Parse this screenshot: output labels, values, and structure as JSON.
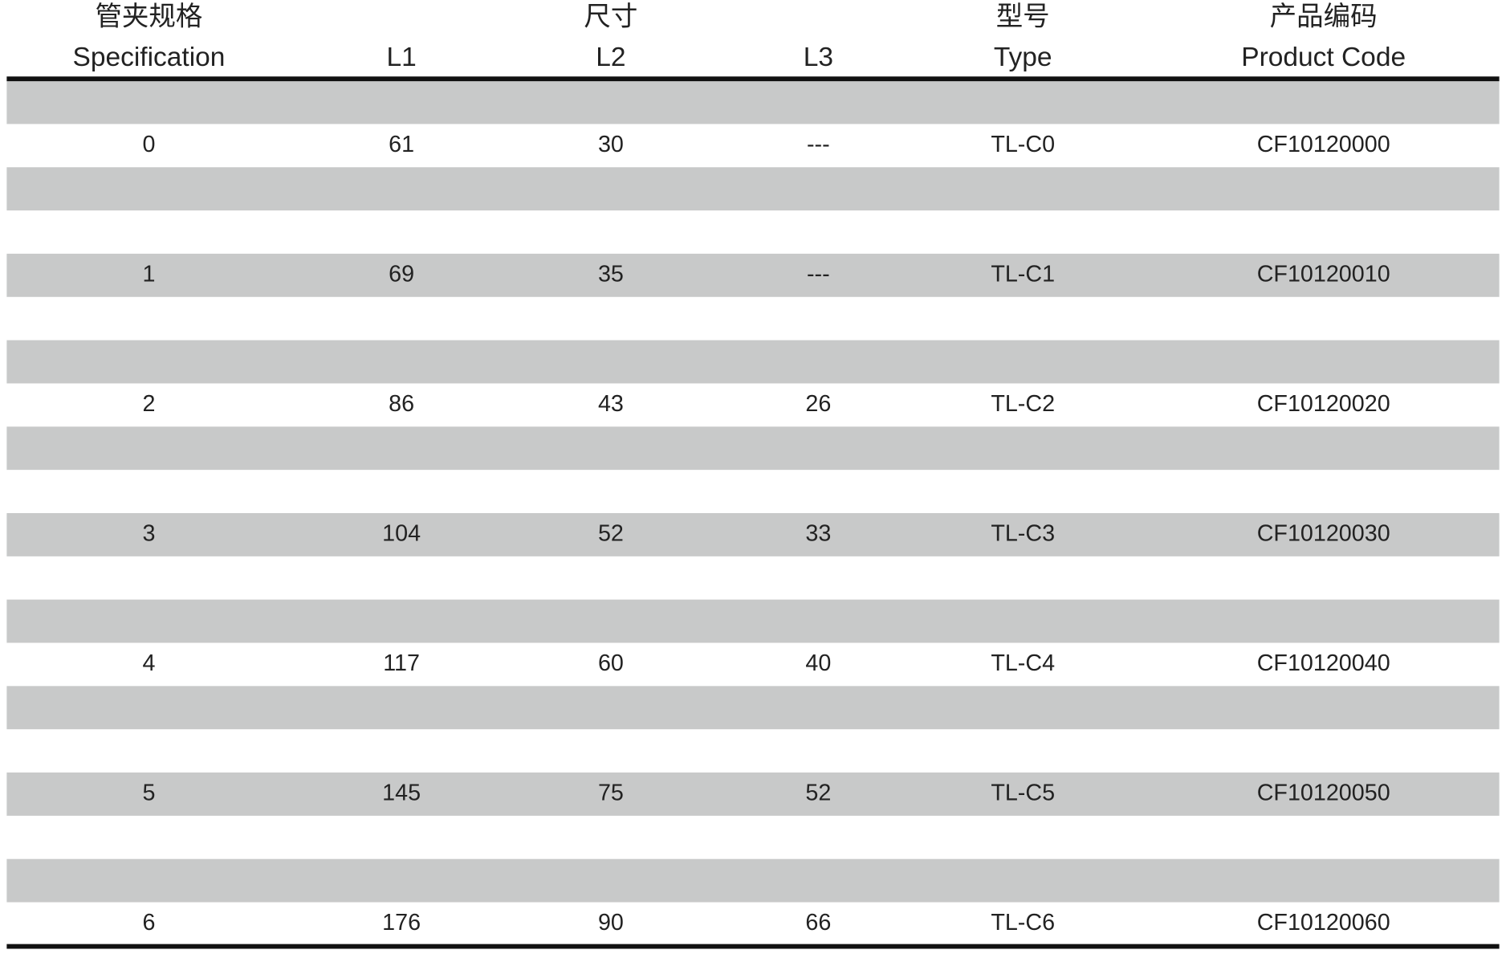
{
  "header": {
    "spec_cn": "管夹规格",
    "dim_cn": "尺寸",
    "type_cn": "型号",
    "code_cn": "产品编码",
    "columns": [
      "Specification",
      "L1",
      "L2",
      "L3",
      "Type",
      "Product Code"
    ]
  },
  "table": {
    "rows": [
      [
        "0",
        "61",
        "30",
        "---",
        "TL-C0",
        "CF10120000"
      ],
      [
        "1",
        "69",
        "35",
        "---",
        "TL-C1",
        "CF10120010"
      ],
      [
        "2",
        "86",
        "43",
        "26",
        "TL-C2",
        "CF10120020"
      ],
      [
        "3",
        "104",
        "52",
        "33",
        "TL-C3",
        "CF10120030"
      ],
      [
        "4",
        "117",
        "60",
        "40",
        "TL-C4",
        "CF10120040"
      ],
      [
        "5",
        "145",
        "75",
        "52",
        "TL-C5",
        "CF10120050"
      ],
      [
        "6",
        "176",
        "90",
        "66",
        "TL-C6",
        "CF10120060"
      ]
    ]
  }
}
